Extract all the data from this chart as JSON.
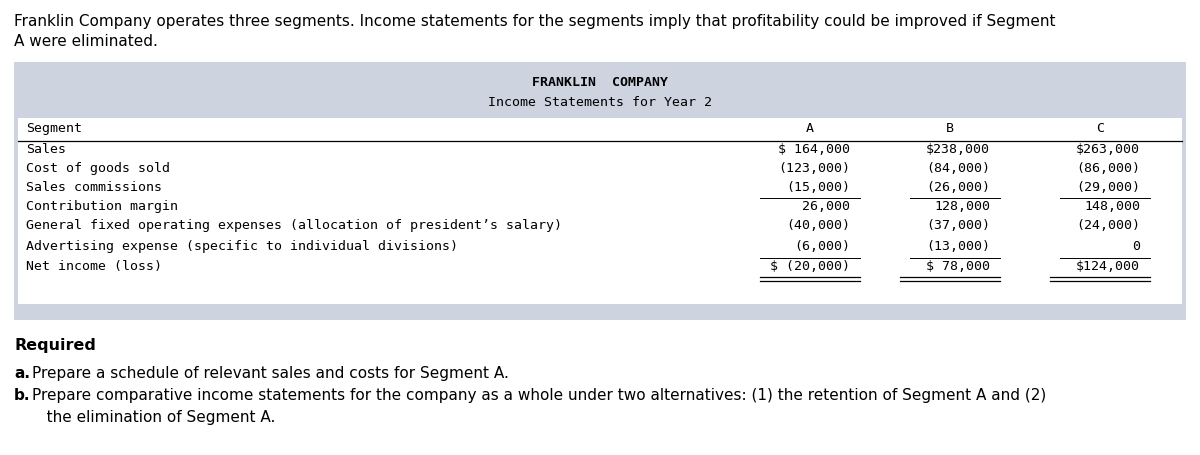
{
  "intro_line1": "Franklin Company operates three segments. Income statements for the segments imply that profitability could be improved if Segment",
  "intro_line2": "A were eliminated.",
  "table_title1": "FRANKLIN  COMPANY",
  "table_title2": "Income Statements for Year 2",
  "rows": [
    {
      "label": "Segment",
      "A": "A",
      "B": "B",
      "C": "C",
      "header": true,
      "underline_above": false,
      "double_underline": false,
      "extra_space_below": false
    },
    {
      "label": "Sales",
      "A": "$ 164,000",
      "B": "$238,000",
      "C": "$263,000",
      "header": false,
      "underline_above": true,
      "double_underline": false,
      "extra_space_below": false
    },
    {
      "label": "Cost of goods sold",
      "A": "(123,000)",
      "B": "(84,000)",
      "C": "(86,000)",
      "header": false,
      "underline_above": false,
      "double_underline": false,
      "extra_space_below": false
    },
    {
      "label": "Sales commissions",
      "A": "(15,000)",
      "B": "(26,000)",
      "C": "(29,000)",
      "header": false,
      "underline_above": false,
      "double_underline": false,
      "extra_space_below": false
    },
    {
      "label": "Contribution margin",
      "A": "26,000",
      "B": "128,000",
      "C": "148,000",
      "header": false,
      "underline_above": true,
      "double_underline": false,
      "extra_space_below": false
    },
    {
      "label": "General fixed operating expenses (allocation of president’s salary)",
      "A": "(40,000)",
      "B": "(37,000)",
      "C": "(24,000)",
      "header": false,
      "underline_above": false,
      "double_underline": false,
      "extra_space_below": false
    },
    {
      "label": "Advertising expense (specific to individual divisions)",
      "A": "(6,000)",
      "B": "(13,000)",
      "C": "0",
      "header": false,
      "underline_above": false,
      "double_underline": false,
      "extra_space_below": false
    },
    {
      "label": "Net income (loss)",
      "A": "$ (20,000)",
      "B": "$ 78,000",
      "C": "$124,000",
      "header": false,
      "underline_above": true,
      "double_underline": true,
      "extra_space_below": false
    }
  ],
  "required_label": "Required",
  "req_a": "a.",
  "req_a_text": "Prepare a schedule of relevant sales and costs for Segment A.",
  "req_b": "b.",
  "req_b_text": "Prepare comparative income statements for the company as a whole under two alternatives: (1) the retention of Segment A and (2)",
  "req_b_text2": "   the elimination of Segment A.",
  "table_bg": "#cdd3df",
  "table_inner_bg": "#ffffff",
  "header_line_color": "#000000"
}
